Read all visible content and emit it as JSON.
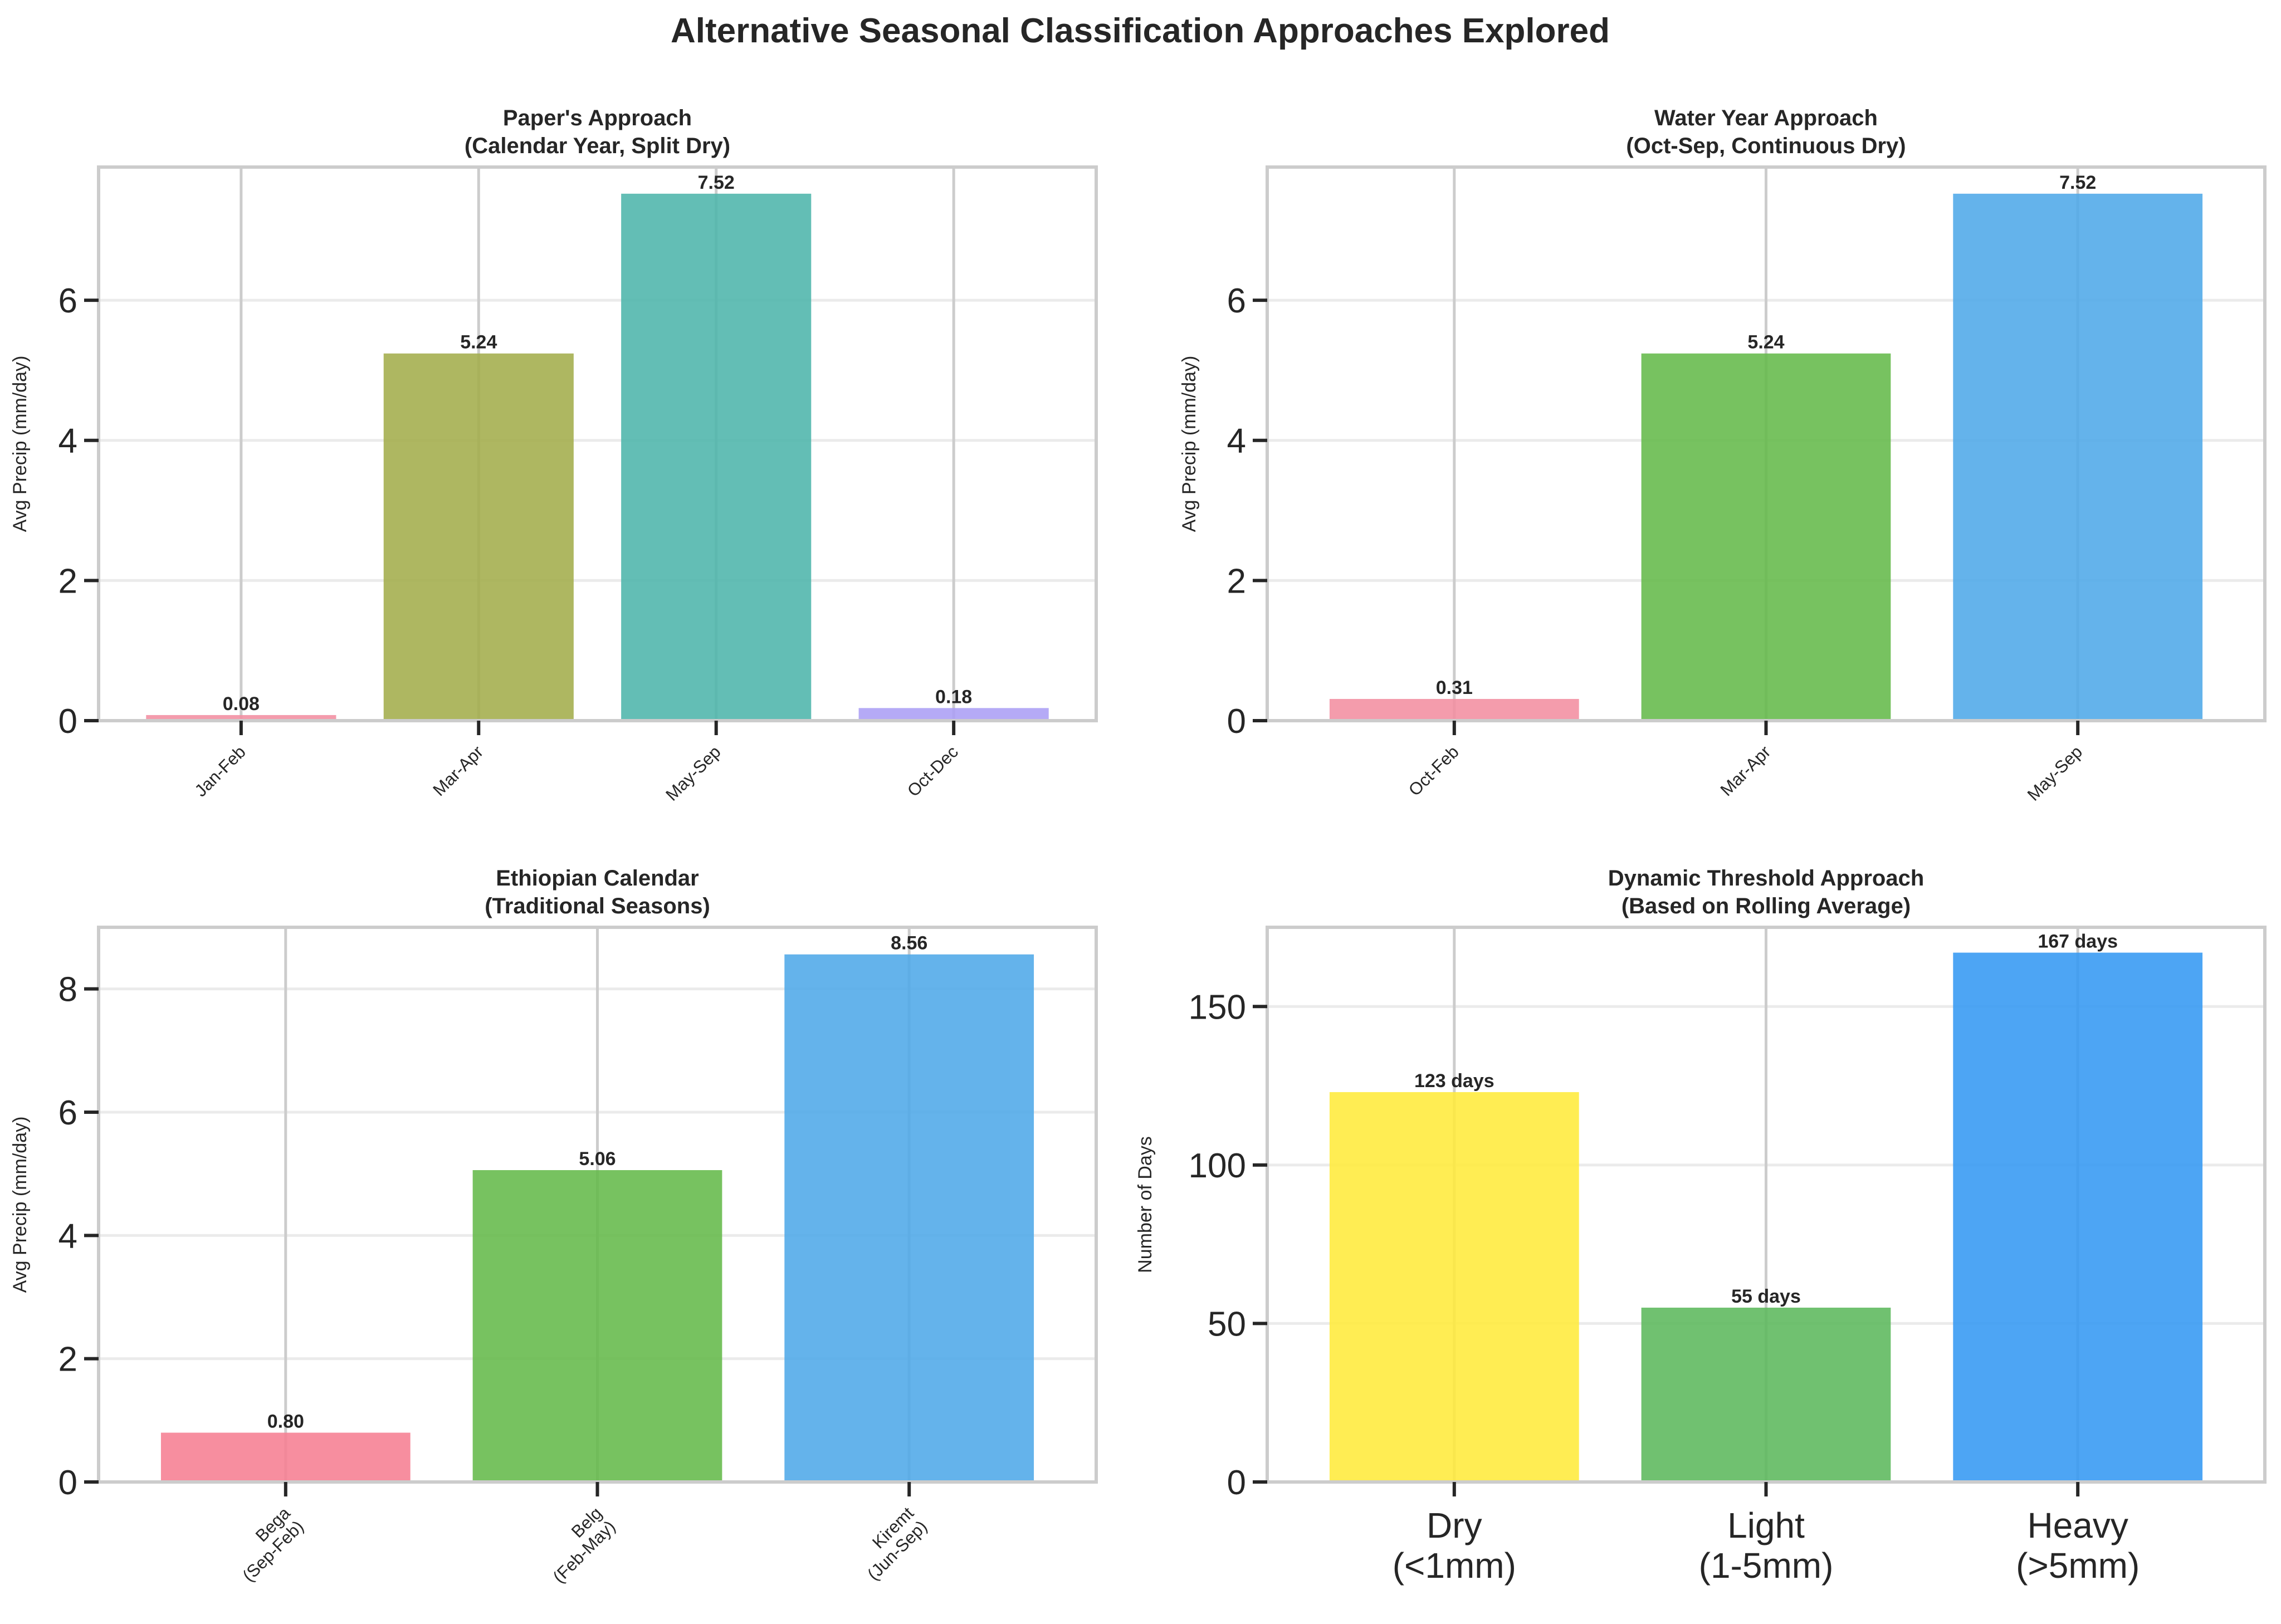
{
  "figure_title": "Alternative Seasonal Classification Approaches Explored",
  "chart_data": [
    {
      "type": "bar",
      "title": "Paper's Approach\n(Calendar Year, Split Dry)",
      "ylabel": "Avg Precip (mm/day)",
      "xlabel": "",
      "categories": [
        "Jan-Feb",
        "Mar-Apr",
        "May-Sep",
        "Oct-Dec"
      ],
      "values": [
        0.08,
        5.24,
        7.52,
        0.18
      ],
      "value_labels": [
        "0.08",
        "5.24",
        "7.52",
        "0.18"
      ],
      "colors": [
        "#f38ea0",
        "#a3ad4b",
        "#4db5ab",
        "#ab9ef5"
      ],
      "ylim": [
        0,
        7.9
      ],
      "yticks": [
        0,
        2,
        4,
        6
      ],
      "xtick_rotation": "45deg",
      "grid": true
    },
    {
      "type": "bar",
      "title": "Water Year Approach\n(Oct-Sep, Continuous Dry)",
      "ylabel": "Avg Precip (mm/day)",
      "xlabel": "",
      "categories": [
        "Oct-Feb",
        "Mar-Apr",
        "May-Sep"
      ],
      "values": [
        0.31,
        5.24,
        7.52
      ],
      "value_labels": [
        "0.31",
        "5.24",
        "7.52"
      ],
      "colors": [
        "#f38ea0",
        "#64b94a",
        "#4fa8e8"
      ],
      "ylim": [
        0,
        7.9
      ],
      "yticks": [
        0,
        2,
        4,
        6
      ],
      "xtick_rotation": "45deg",
      "grid": true
    },
    {
      "type": "bar",
      "title": "Ethiopian Calendar\n(Traditional Seasons)",
      "ylabel": "Avg Precip (mm/day)",
      "xlabel": "",
      "categories": [
        "Bega\n(Sep-Feb)",
        "Belg\n(Feb-May)",
        "Kiremt\n(Jun-Sep)"
      ],
      "values": [
        0.8,
        5.06,
        8.56
      ],
      "value_labels": [
        "0.80",
        "5.06",
        "8.56"
      ],
      "colors": [
        "#f67e92",
        "#64b94a",
        "#4fa8e8"
      ],
      "ylim": [
        0,
        9.0
      ],
      "yticks": [
        0,
        2,
        4,
        6,
        8
      ],
      "xtick_rotation": "45deg",
      "grid": true
    },
    {
      "type": "bar",
      "title": "Dynamic Threshold Approach\n(Based on Rolling Average)",
      "ylabel": "Number of Days",
      "xlabel": "",
      "categories": [
        "Dry\n(<1mm)",
        "Light\n(1-5mm)",
        "Heavy\n(>5mm)"
      ],
      "values": [
        123,
        55,
        167
      ],
      "value_labels": [
        "123 days",
        "55 days",
        "167 days"
      ],
      "colors": [
        "#ffeb3b",
        "#5cb85c",
        "#3498f2"
      ],
      "ylim": [
        0,
        175
      ],
      "yticks": [
        0,
        50,
        100,
        150
      ],
      "xtick_rotation": "0deg",
      "grid": true
    }
  ]
}
